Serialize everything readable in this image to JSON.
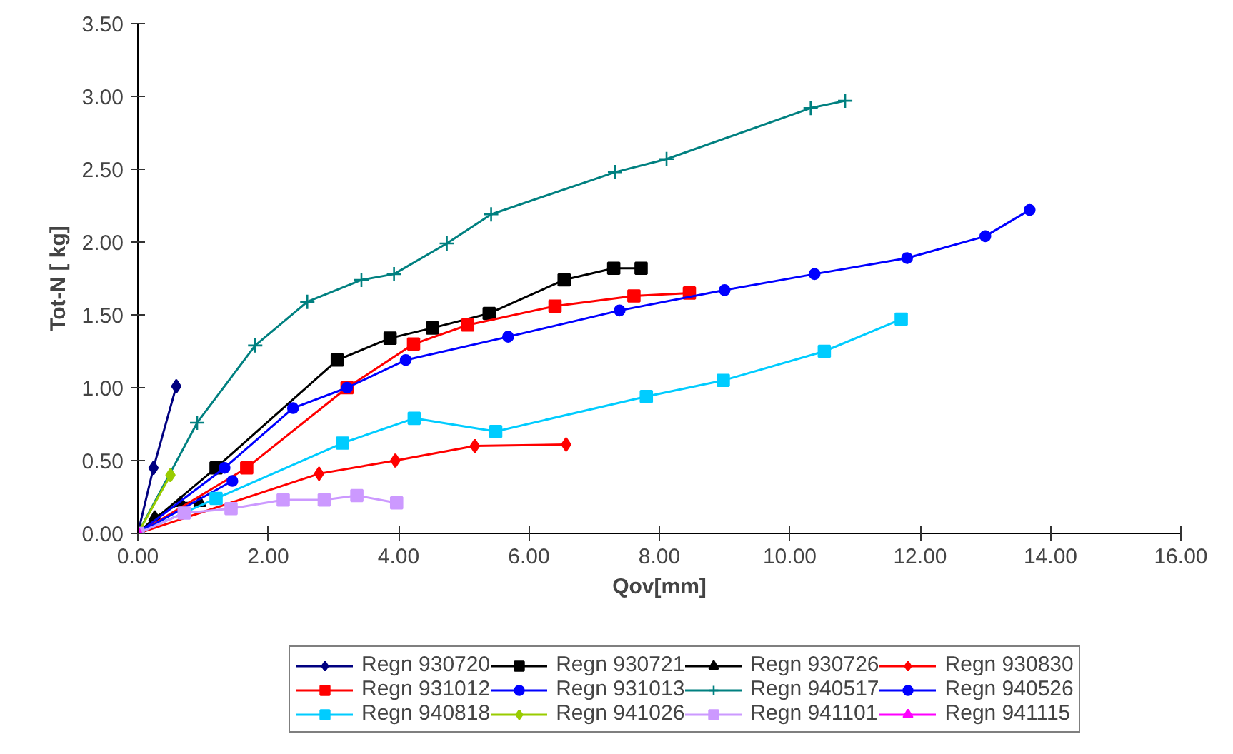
{
  "chart_data": {
    "type": "line",
    "xlabel": "Qov[mm]",
    "ylabel": "Tot-N [ kg]",
    "xlim": [
      0,
      16
    ],
    "ylim": [
      0,
      3.5
    ],
    "xticks": [
      {
        "value": 0,
        "label": "0.00"
      },
      {
        "value": 2,
        "label": "2.00"
      },
      {
        "value": 4,
        "label": "4.00"
      },
      {
        "value": 6,
        "label": "6.00"
      },
      {
        "value": 8,
        "label": "8.00"
      },
      {
        "value": 10,
        "label": "10.00"
      },
      {
        "value": 12,
        "label": "12.00"
      },
      {
        "value": 14,
        "label": "14.00"
      },
      {
        "value": 16,
        "label": "16.00"
      }
    ],
    "yticks": [
      {
        "value": 0,
        "label": "0.00"
      },
      {
        "value": 0.5,
        "label": "0.50"
      },
      {
        "value": 1,
        "label": "1.00"
      },
      {
        "value": 1.5,
        "label": "1.50"
      },
      {
        "value": 2,
        "label": "2.00"
      },
      {
        "value": 2.5,
        "label": "2.50"
      },
      {
        "value": 3,
        "label": "3.00"
      },
      {
        "value": 3.5,
        "label": "3.50"
      }
    ],
    "grid": false,
    "legend": "bottom",
    "line_style": "solid",
    "series": [
      {
        "name": "Regn 930720",
        "color": "#000080",
        "marker": "diamond",
        "x": [
          0,
          0.24,
          0.59
        ],
        "values": [
          0,
          0.45,
          1.01
        ]
      },
      {
        "name": "Regn 930721",
        "color": "#000000",
        "marker": "square",
        "x": [
          0,
          1.2,
          3.06,
          3.87,
          4.52,
          5.39,
          6.54,
          7.3,
          7.72
        ],
        "values": [
          0,
          0.45,
          1.19,
          1.34,
          1.41,
          1.51,
          1.74,
          1.82,
          1.82
        ]
      },
      {
        "name": "Regn 930726",
        "color": "#000000",
        "marker": "triangle",
        "x": [
          0,
          0.26,
          0.66,
          0.95
        ],
        "values": [
          0,
          0.11,
          0.21,
          0.21
        ]
      },
      {
        "name": "Regn 930830",
        "color": "#ff0000",
        "marker": "diamond",
        "x": [
          0,
          2.78,
          3.95,
          5.17,
          6.57
        ],
        "values": [
          0,
          0.41,
          0.5,
          0.6,
          0.61
        ]
      },
      {
        "name": "Regn 931012",
        "color": "#ff0000",
        "marker": "square",
        "x": [
          0,
          1.67,
          3.21,
          4.23,
          5.06,
          6.4,
          7.61,
          8.46
        ],
        "values": [
          0,
          0.45,
          1.0,
          1.3,
          1.43,
          1.56,
          1.63,
          1.65
        ]
      },
      {
        "name": "Regn 931013",
        "color": "#0000ff",
        "marker": "circle",
        "x": [
          0,
          1.45
        ],
        "values": [
          0,
          0.36
        ]
      },
      {
        "name": "Regn 940517",
        "color": "#008080",
        "marker": "cross",
        "x": [
          0,
          0.91,
          1.8,
          2.6,
          3.43,
          3.93,
          4.74,
          5.42,
          7.32,
          8.11,
          10.32,
          10.85
        ],
        "values": [
          0,
          0.76,
          1.29,
          1.59,
          1.74,
          1.78,
          1.99,
          2.19,
          2.48,
          2.57,
          2.92,
          2.97
        ]
      },
      {
        "name": "Regn 940526",
        "color": "#0000ff",
        "marker": "circle",
        "x": [
          0,
          1.33,
          2.38,
          3.21,
          4.11,
          5.68,
          7.39,
          9.0,
          10.38,
          11.8,
          13.0,
          13.68
        ],
        "values": [
          0,
          0.45,
          0.86,
          1.0,
          1.19,
          1.35,
          1.53,
          1.67,
          1.78,
          1.89,
          2.04,
          2.22
        ]
      },
      {
        "name": "Regn 940818",
        "color": "#00ccff",
        "marker": "square",
        "x": [
          0,
          1.2,
          3.14,
          4.24,
          5.49,
          7.8,
          8.98,
          10.53,
          11.71
        ],
        "values": [
          0,
          0.24,
          0.62,
          0.79,
          0.7,
          0.94,
          1.05,
          1.25,
          1.47
        ]
      },
      {
        "name": "Regn 941026",
        "color": "#99cc00",
        "marker": "diamond",
        "x": [
          0,
          0.5
        ],
        "values": [
          0,
          0.4
        ]
      },
      {
        "name": "Regn 941101",
        "color": "#cc99ff",
        "marker": "square",
        "x": [
          0,
          0.71,
          1.43,
          2.23,
          2.86,
          3.36,
          3.97
        ],
        "values": [
          0,
          0.14,
          0.17,
          0.23,
          0.23,
          0.26,
          0.21
        ]
      },
      {
        "name": "Regn 941115",
        "color": "#ff00ff",
        "marker": "triangle",
        "x": [
          0
        ],
        "values": [
          0
        ]
      }
    ]
  }
}
